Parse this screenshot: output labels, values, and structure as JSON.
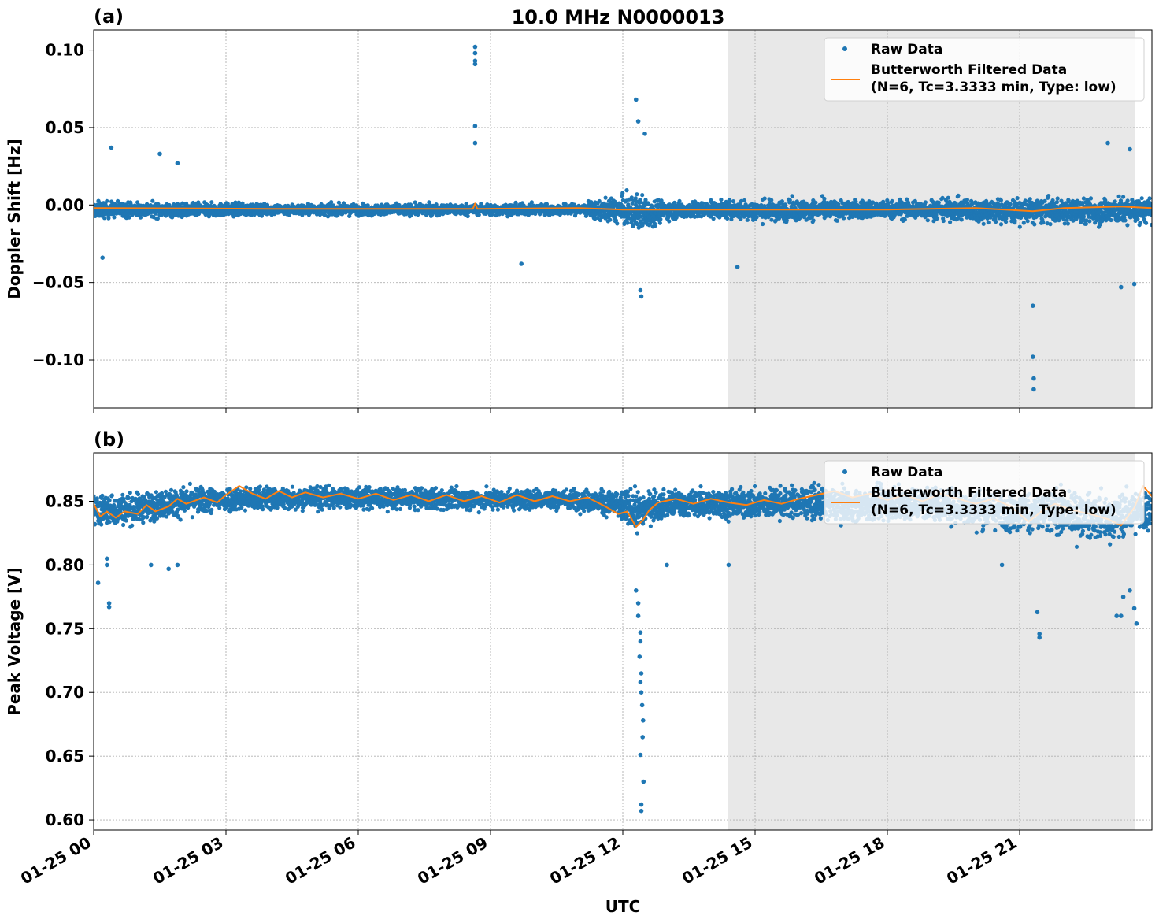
{
  "title": "10.0 MHz N0000013",
  "colors": {
    "raw": "#1f77b4",
    "filtered": "#ff7f0e",
    "shade": "#e8e8e8",
    "grid": "#b0b0b0"
  },
  "chart_data": [
    {
      "panel_label": "(a)",
      "type": "scatter",
      "ylabel": "Doppler Shift [Hz]",
      "xlabel": "",
      "xlim": [
        0,
        24
      ],
      "ylim": [
        -0.131,
        0.113
      ],
      "yticks": [
        0.1,
        0.05,
        0.0,
        -0.05,
        -0.1
      ],
      "ytick_labels": [
        "0.10",
        "0.05",
        "0.00",
        "−0.05",
        "−0.10"
      ],
      "xticks": [
        0,
        3,
        6,
        9,
        12,
        15,
        18,
        21
      ],
      "xtick_labels": [],
      "grid": true,
      "legend_position": "top-right",
      "legend": [
        "Raw Data",
        "Butterworth Filtered Data",
        "(N=6, Tc=3.3333 min, Type: low)"
      ],
      "night_band": [
        14.38,
        23.62
      ],
      "series": [
        {
          "name": "Raw Data",
          "band": [
            [
              0,
              0.006,
              -0.012
            ],
            [
              1,
              0.005,
              -0.011
            ],
            [
              2,
              0.004,
              -0.011
            ],
            [
              3,
              0.004,
              -0.01
            ],
            [
              4,
              0.003,
              -0.009
            ],
            [
              5,
              0.003,
              -0.009
            ],
            [
              6,
              0.003,
              -0.009
            ],
            [
              7,
              0.003,
              -0.009
            ],
            [
              8,
              0.003,
              -0.009
            ],
            [
              9,
              0.003,
              -0.009
            ],
            [
              10,
              0.003,
              -0.009
            ],
            [
              11,
              0.003,
              -0.009
            ],
            [
              11.8,
              0.01,
              -0.017
            ],
            [
              12.4,
              0.015,
              -0.025
            ],
            [
              13,
              0.006,
              -0.013
            ],
            [
              14,
              0.006,
              -0.012
            ],
            [
              15,
              0.008,
              -0.015
            ],
            [
              16,
              0.008,
              -0.015
            ],
            [
              17,
              0.007,
              -0.013
            ],
            [
              18,
              0.007,
              -0.013
            ],
            [
              19,
              0.008,
              -0.014
            ],
            [
              20,
              0.009,
              -0.016
            ],
            [
              21,
              0.01,
              -0.018
            ],
            [
              22,
              0.009,
              -0.017
            ],
            [
              23,
              0.011,
              -0.019
            ],
            [
              24,
              0.01,
              -0.017
            ]
          ],
          "outliers": [
            [
              0.4,
              0.037
            ],
            [
              1.5,
              0.033
            ],
            [
              1.9,
              0.027
            ],
            [
              8.65,
              0.102
            ],
            [
              8.65,
              0.098
            ],
            [
              8.65,
              0.093
            ],
            [
              8.65,
              0.091
            ],
            [
              8.65,
              0.051
            ],
            [
              8.65,
              0.04
            ],
            [
              12.3,
              0.068
            ],
            [
              12.35,
              0.054
            ],
            [
              12.5,
              0.046
            ],
            [
              12.4,
              -0.055
            ],
            [
              12.42,
              -0.059
            ],
            [
              14.6,
              -0.04
            ],
            [
              21.3,
              -0.065
            ],
            [
              21.3,
              -0.098
            ],
            [
              21.32,
              -0.112
            ],
            [
              21.32,
              -0.119
            ],
            [
              23.3,
              -0.053
            ],
            [
              23.6,
              -0.051
            ],
            [
              23.0,
              0.04
            ],
            [
              23.5,
              0.036
            ],
            [
              0.2,
              -0.034
            ],
            [
              9.7,
              -0.038
            ]
          ]
        },
        {
          "name": "Butterworth Filtered Data",
          "points": [
            [
              0,
              -0.002
            ],
            [
              4,
              -0.0025
            ],
            [
              8.6,
              -0.0025
            ],
            [
              8.65,
              0.001
            ],
            [
              8.7,
              -0.0025
            ],
            [
              11,
              -0.002
            ],
            [
              12,
              -0.003
            ],
            [
              14,
              -0.003
            ],
            [
              16,
              -0.003
            ],
            [
              18,
              -0.003
            ],
            [
              20,
              -0.002
            ],
            [
              21.3,
              -0.004
            ],
            [
              22,
              -0.002
            ],
            [
              23.3,
              -0.001
            ],
            [
              24,
              -0.002
            ]
          ]
        }
      ]
    },
    {
      "panel_label": "(b)",
      "type": "scatter",
      "ylabel": "Peak Voltage [V]",
      "xlabel": "UTC",
      "xlim": [
        0,
        24
      ],
      "ylim": [
        0.592,
        0.888
      ],
      "yticks": [
        0.85,
        0.8,
        0.75,
        0.7,
        0.65,
        0.6
      ],
      "ytick_labels": [
        "0.85",
        "0.80",
        "0.75",
        "0.70",
        "0.65",
        "0.60"
      ],
      "xticks": [
        0,
        3,
        6,
        9,
        12,
        15,
        18,
        21
      ],
      "xtick_labels": [
        "01-25 00",
        "01-25 03",
        "01-25 06",
        "01-25 09",
        "01-25 12",
        "01-25 15",
        "01-25 18",
        "01-25 21"
      ],
      "grid": true,
      "legend_position": "top-right",
      "legend": [
        "Raw Data",
        "Butterworth Filtered Data",
        "(N=6, Tc=3.3333 min, Type: low)"
      ],
      "night_band": [
        14.38,
        23.62
      ],
      "series": [
        {
          "name": "Raw Data",
          "band": [
            [
              0,
              0.865,
              0.82
            ],
            [
              1,
              0.864,
              0.825
            ],
            [
              2,
              0.868,
              0.832
            ],
            [
              3,
              0.868,
              0.835
            ],
            [
              5,
              0.868,
              0.838
            ],
            [
              7,
              0.866,
              0.838
            ],
            [
              9,
              0.865,
              0.838
            ],
            [
              11,
              0.865,
              0.838
            ],
            [
              11.8,
              0.865,
              0.83
            ],
            [
              12.3,
              0.87,
              0.815
            ],
            [
              12.6,
              0.866,
              0.825
            ],
            [
              13,
              0.866,
              0.83
            ],
            [
              14,
              0.866,
              0.83
            ],
            [
              15,
              0.868,
              0.828
            ],
            [
              16,
              0.87,
              0.828
            ],
            [
              17,
              0.868,
              0.826
            ],
            [
              18,
              0.87,
              0.826
            ],
            [
              19,
              0.87,
              0.826
            ],
            [
              20,
              0.868,
              0.82
            ],
            [
              21,
              0.868,
              0.815
            ],
            [
              22,
              0.868,
              0.812
            ],
            [
              23,
              0.866,
              0.808
            ],
            [
              24,
              0.872,
              0.815
            ]
          ],
          "outliers": [
            [
              0.1,
              0.786
            ],
            [
              0.3,
              0.8
            ],
            [
              0.3,
              0.805
            ],
            [
              0.35,
              0.77
            ],
            [
              0.35,
              0.767
            ],
            [
              1.3,
              0.8
            ],
            [
              1.7,
              0.797
            ],
            [
              1.9,
              0.8
            ],
            [
              12.3,
              0.78
            ],
            [
              12.35,
              0.77
            ],
            [
              12.35,
              0.76
            ],
            [
              12.4,
              0.747
            ],
            [
              12.4,
              0.74
            ],
            [
              12.38,
              0.728
            ],
            [
              12.42,
              0.715
            ],
            [
              12.4,
              0.708
            ],
            [
              12.42,
              0.7
            ],
            [
              12.44,
              0.69
            ],
            [
              12.46,
              0.678
            ],
            [
              12.45,
              0.665
            ],
            [
              12.4,
              0.651
            ],
            [
              12.47,
              0.63
            ],
            [
              12.42,
              0.612
            ],
            [
              12.42,
              0.607
            ],
            [
              13.0,
              0.8
            ],
            [
              14.4,
              0.8
            ],
            [
              21.4,
              0.763
            ],
            [
              21.45,
              0.746
            ],
            [
              21.45,
              0.743
            ],
            [
              23.3,
              0.76
            ],
            [
              23.35,
              0.775
            ],
            [
              23.2,
              0.76
            ],
            [
              23.5,
              0.78
            ],
            [
              23.6,
              0.766
            ],
            [
              23.65,
              0.754
            ],
            [
              20.6,
              0.8
            ]
          ]
        },
        {
          "name": "Butterworth Filtered Data",
          "points": [
            [
              0,
              0.848
            ],
            [
              0.15,
              0.838
            ],
            [
              0.3,
              0.842
            ],
            [
              0.5,
              0.837
            ],
            [
              0.7,
              0.842
            ],
            [
              1.0,
              0.84
            ],
            [
              1.2,
              0.847
            ],
            [
              1.4,
              0.842
            ],
            [
              1.7,
              0.846
            ],
            [
              1.9,
              0.852
            ],
            [
              2.1,
              0.848
            ],
            [
              2.5,
              0.853
            ],
            [
              2.8,
              0.849
            ],
            [
              3.0,
              0.855
            ],
            [
              3.3,
              0.862
            ],
            [
              3.6,
              0.856
            ],
            [
              3.9,
              0.852
            ],
            [
              4.2,
              0.858
            ],
            [
              4.5,
              0.853
            ],
            [
              4.8,
              0.857
            ],
            [
              5.2,
              0.853
            ],
            [
              5.6,
              0.856
            ],
            [
              6.0,
              0.852
            ],
            [
              6.4,
              0.856
            ],
            [
              6.8,
              0.851
            ],
            [
              7.2,
              0.855
            ],
            [
              7.6,
              0.85
            ],
            [
              8.0,
              0.855
            ],
            [
              8.4,
              0.85
            ],
            [
              8.8,
              0.854
            ],
            [
              9.2,
              0.849
            ],
            [
              9.6,
              0.855
            ],
            [
              10.0,
              0.85
            ],
            [
              10.4,
              0.854
            ],
            [
              10.8,
              0.85
            ],
            [
              11.2,
              0.853
            ],
            [
              11.6,
              0.846
            ],
            [
              11.9,
              0.84
            ],
            [
              12.1,
              0.842
            ],
            [
              12.3,
              0.83
            ],
            [
              12.45,
              0.835
            ],
            [
              12.6,
              0.843
            ],
            [
              12.8,
              0.849
            ],
            [
              13.2,
              0.852
            ],
            [
              13.6,
              0.848
            ],
            [
              14.0,
              0.852
            ],
            [
              14.4,
              0.849
            ],
            [
              14.8,
              0.847
            ],
            [
              15.2,
              0.851
            ],
            [
              15.6,
              0.848
            ],
            [
              16.0,
              0.852
            ],
            [
              16.4,
              0.855
            ],
            [
              16.8,
              0.858
            ],
            [
              17.2,
              0.853
            ],
            [
              17.6,
              0.856
            ],
            [
              18.0,
              0.851
            ],
            [
              18.4,
              0.855
            ],
            [
              18.8,
              0.85
            ],
            [
              19.2,
              0.856
            ],
            [
              19.6,
              0.852
            ],
            [
              20.0,
              0.848
            ],
            [
              20.4,
              0.852
            ],
            [
              20.8,
              0.846
            ],
            [
              21.2,
              0.834
            ],
            [
              21.5,
              0.842
            ],
            [
              21.8,
              0.848
            ],
            [
              22.2,
              0.843
            ],
            [
              22.6,
              0.84
            ],
            [
              23.0,
              0.836
            ],
            [
              23.3,
              0.831
            ],
            [
              23.6,
              0.845
            ],
            [
              23.8,
              0.862
            ],
            [
              24,
              0.854
            ]
          ]
        }
      ]
    }
  ]
}
